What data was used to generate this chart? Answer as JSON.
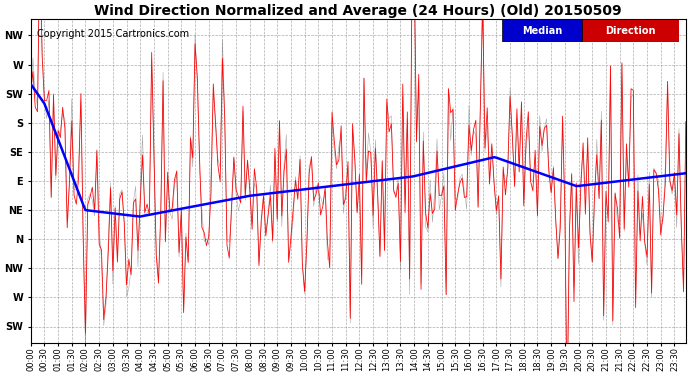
{
  "title": "Wind Direction Normalized and Average (24 Hours) (Old) 20150509",
  "copyright": "Copyright 2015 Cartronics.com",
  "legend_median_bg": "#0000cc",
  "legend_direction_bg": "#cc0000",
  "legend_median_text": "Median",
  "legend_direction_text": "Direction",
  "background_color": "#ffffff",
  "plot_bg_color": "#ffffff",
  "grid_color": "#999999",
  "ytick_labels": [
    "NW",
    "W",
    "SW",
    "S",
    "SE",
    "E",
    "NE",
    "N",
    "NW",
    "W",
    "SW"
  ],
  "ytick_values": [
    315,
    270,
    225,
    180,
    135,
    90,
    45,
    0,
    -45,
    -90,
    -135
  ],
  "xlabel_rotation": 90,
  "num_points": 288,
  "red_line_color": "#ff0000",
  "blue_line_color": "#0000ff",
  "dark_line_color": "#555555",
  "title_fontsize": 10,
  "copyright_fontsize": 7,
  "tick_fontsize": 6,
  "ylabel_fontsize": 7,
  "ylim_min": -160,
  "ylim_max": 340
}
